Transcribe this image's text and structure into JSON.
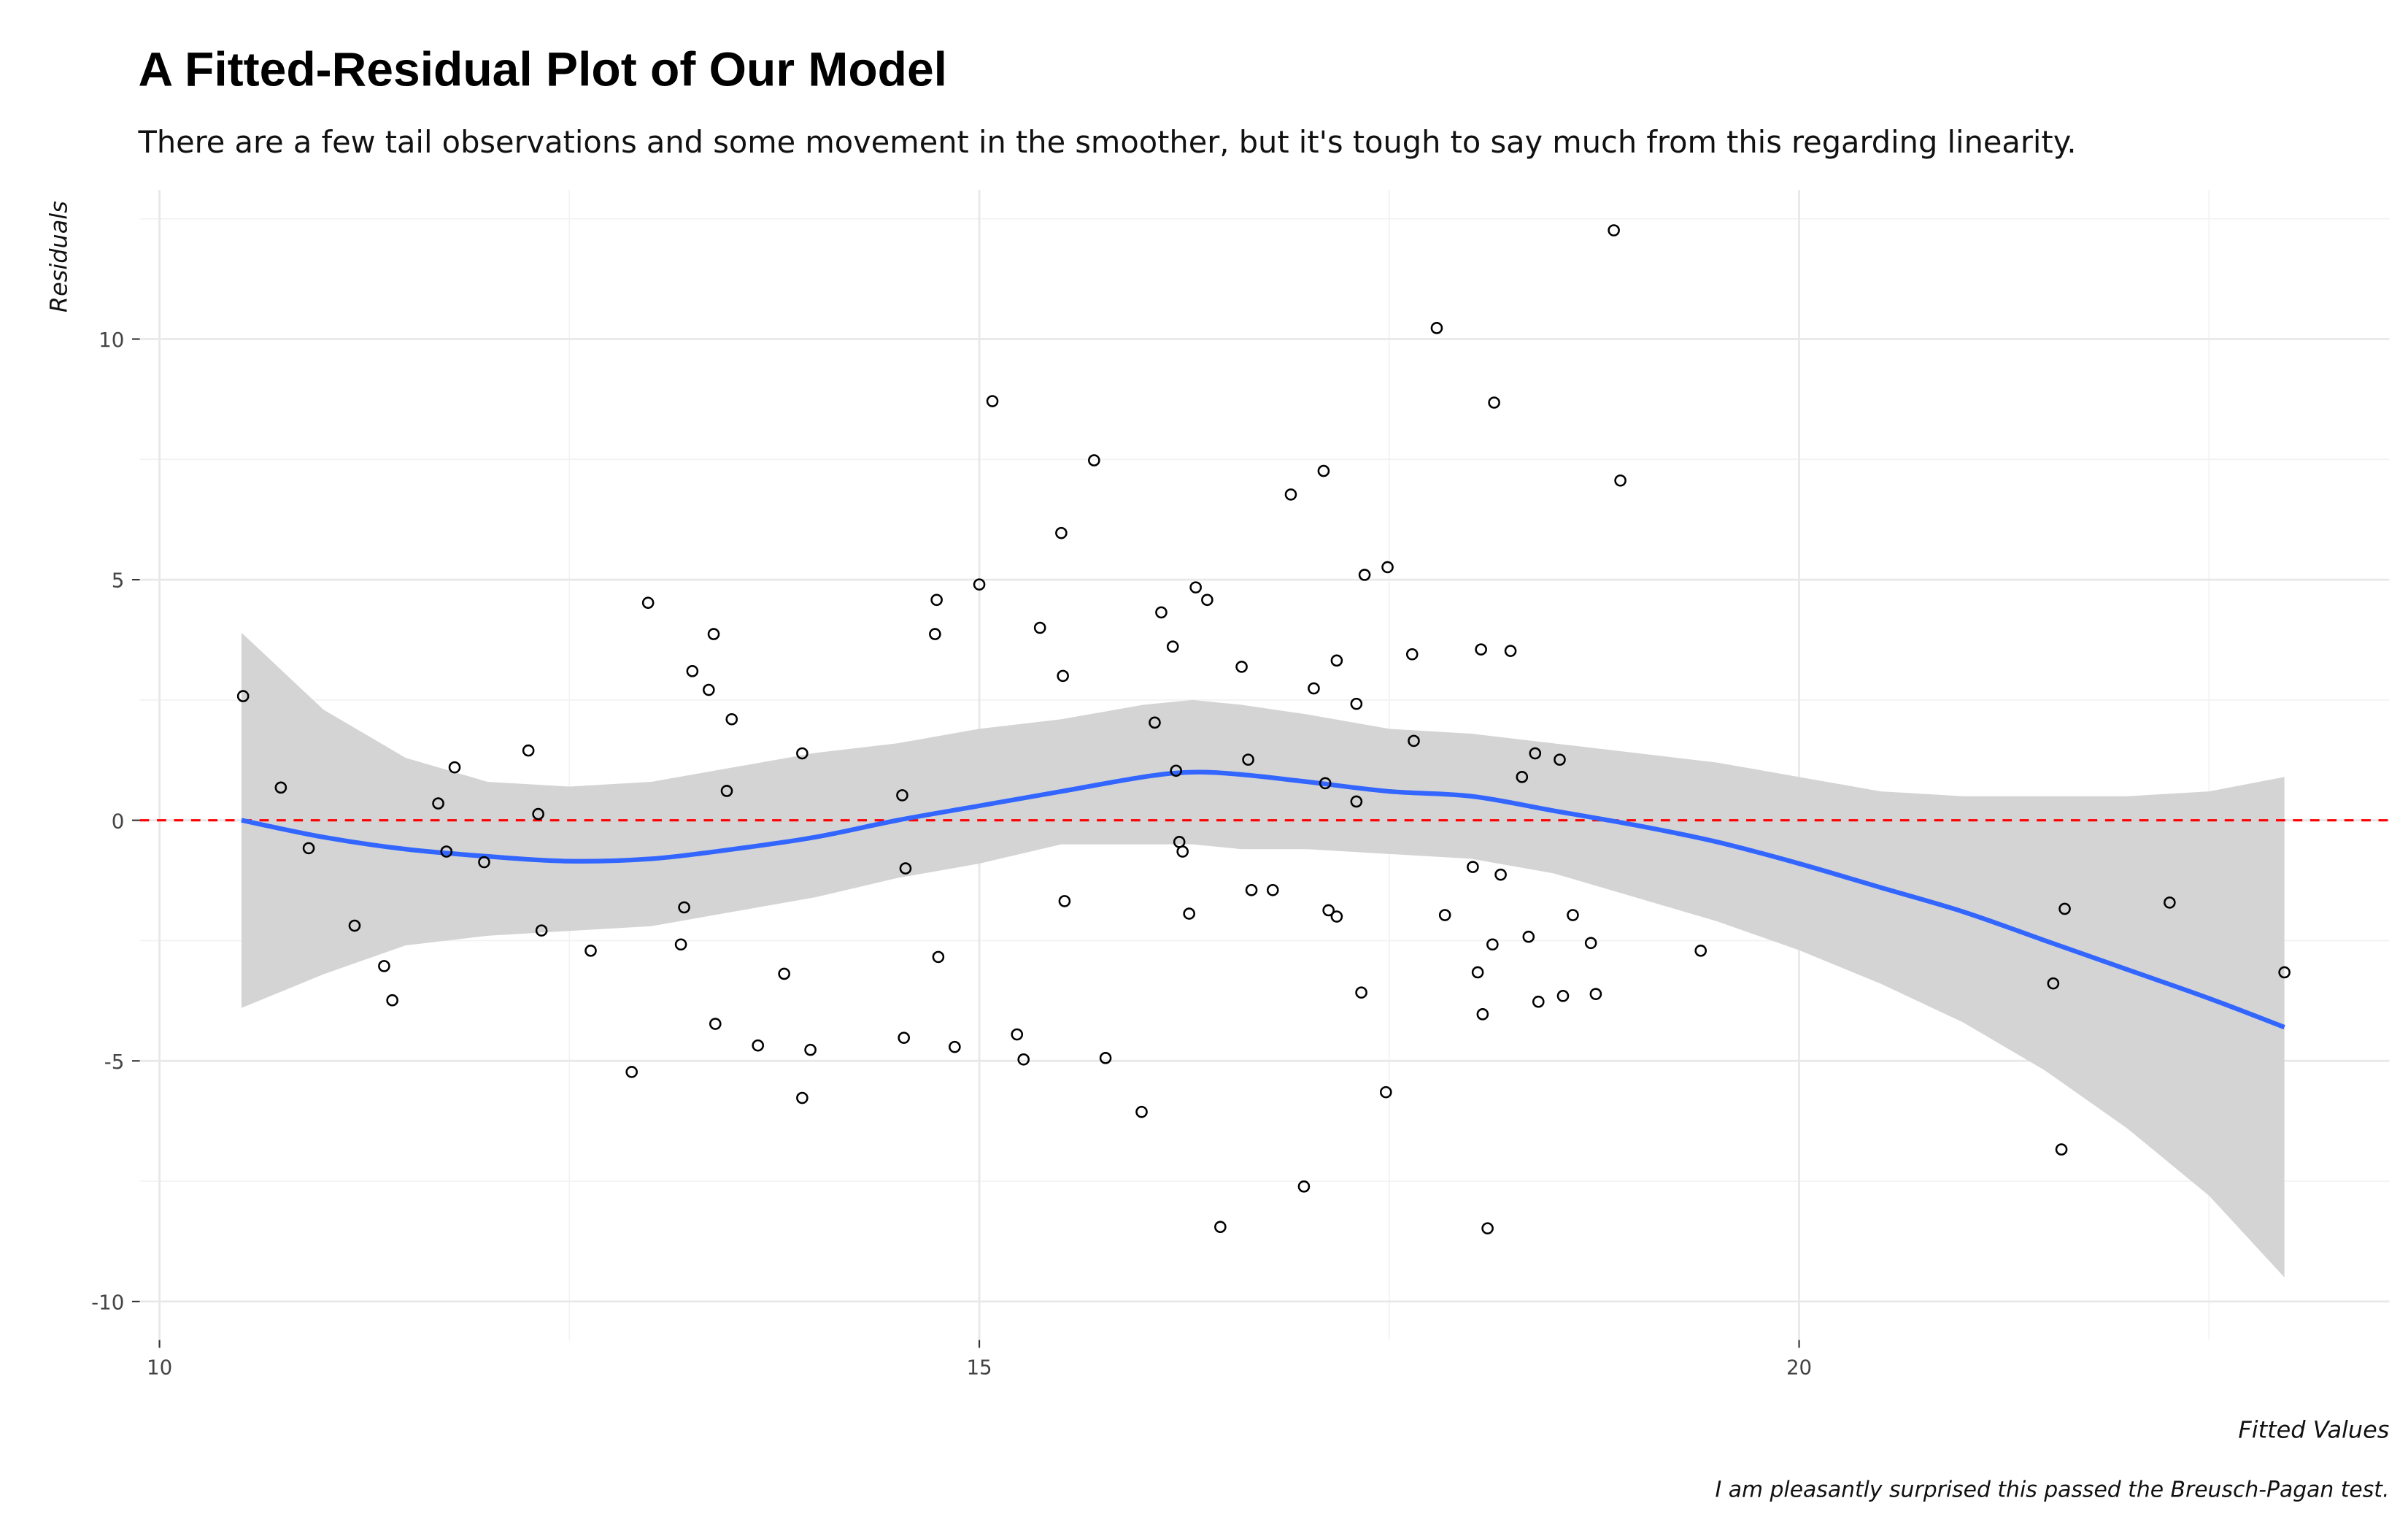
{
  "chart_data": {
    "type": "scatter",
    "title": "A Fitted-Residual Plot of Our Model",
    "subtitle": "There are a few tail observations and some movement in the smoother, but it's tough to say much from this regarding linearity.",
    "xlabel": "Fitted Values",
    "ylabel": "Residuals",
    "caption": "I am pleasantly surprised this passed the Breusch-Pagan test.",
    "xlim": [
      9.88,
      23.6
    ],
    "ylim": [
      -10.8,
      13.1
    ],
    "xticks": [
      10,
      15,
      20
    ],
    "xtick_labels": [
      "10",
      "15",
      "20"
    ],
    "yticks": [
      -10,
      -5,
      0,
      5,
      10
    ],
    "ytick_labels": [
      "-10",
      "-5",
      "0",
      "5",
      "10"
    ],
    "grid": true,
    "reference_line": {
      "y": 0,
      "style": "dashed",
      "color": "#ff0000"
    },
    "smoother_color": "#3366ff",
    "band_color": "#d4d4d4",
    "points": [
      [
        10.51,
        2.58
      ],
      [
        10.74,
        0.68
      ],
      [
        10.91,
        -0.58
      ],
      [
        11.19,
        -2.19
      ],
      [
        11.37,
        -3.03
      ],
      [
        11.42,
        -3.74
      ],
      [
        11.7,
        0.35
      ],
      [
        11.75,
        -0.65
      ],
      [
        11.8,
        1.1
      ],
      [
        11.98,
        -0.87
      ],
      [
        12.25,
        1.45
      ],
      [
        12.31,
        0.13
      ],
      [
        12.33,
        -2.29
      ],
      [
        12.63,
        -2.71
      ],
      [
        12.88,
        -5.23
      ],
      [
        12.98,
        4.52
      ],
      [
        13.18,
        -2.58
      ],
      [
        13.2,
        -1.81
      ],
      [
        13.25,
        3.1
      ],
      [
        13.35,
        2.71
      ],
      [
        13.38,
        3.87
      ],
      [
        13.39,
        -4.23
      ],
      [
        13.46,
        0.61
      ],
      [
        13.49,
        2.1
      ],
      [
        13.65,
        -4.68
      ],
      [
        13.81,
        -3.19
      ],
      [
        13.92,
        1.39
      ],
      [
        13.92,
        -5.77
      ],
      [
        13.97,
        -4.77
      ],
      [
        14.53,
        0.52
      ],
      [
        14.54,
        -4.52
      ],
      [
        14.55,
        -1.0
      ],
      [
        14.73,
        3.87
      ],
      [
        14.74,
        4.58
      ],
      [
        14.75,
        -2.84
      ],
      [
        14.85,
        -4.71
      ],
      [
        15.0,
        4.9
      ],
      [
        15.08,
        8.71
      ],
      [
        15.23,
        -4.45
      ],
      [
        15.27,
        -4.97
      ],
      [
        15.37,
        4.0
      ],
      [
        15.5,
        5.97
      ],
      [
        15.51,
        3.0
      ],
      [
        15.52,
        -1.68
      ],
      [
        15.7,
        7.48
      ],
      [
        15.77,
        -4.94
      ],
      [
        15.99,
        -6.06
      ],
      [
        16.07,
        2.03
      ],
      [
        16.11,
        4.32
      ],
      [
        16.18,
        3.61
      ],
      [
        16.2,
        1.03
      ],
      [
        16.22,
        -0.45
      ],
      [
        16.24,
        -0.65
      ],
      [
        16.28,
        -1.94
      ],
      [
        16.32,
        4.84
      ],
      [
        16.39,
        4.58
      ],
      [
        16.47,
        -8.45
      ],
      [
        16.6,
        3.19
      ],
      [
        16.64,
        1.26
      ],
      [
        16.66,
        -1.45
      ],
      [
        16.79,
        -1.45
      ],
      [
        16.9,
        6.77
      ],
      [
        16.98,
        -7.61
      ],
      [
        17.04,
        2.74
      ],
      [
        17.1,
        7.26
      ],
      [
        17.11,
        0.77
      ],
      [
        17.13,
        -1.87
      ],
      [
        17.18,
        -2.0
      ],
      [
        17.18,
        3.32
      ],
      [
        17.3,
        2.42
      ],
      [
        17.3,
        0.39
      ],
      [
        17.33,
        -3.58
      ],
      [
        17.35,
        5.1
      ],
      [
        17.48,
        -5.65
      ],
      [
        17.49,
        5.26
      ],
      [
        17.64,
        3.45
      ],
      [
        17.65,
        1.65
      ],
      [
        17.79,
        10.23
      ],
      [
        17.84,
        -1.97
      ],
      [
        18.01,
        -0.97
      ],
      [
        18.04,
        -3.16
      ],
      [
        18.06,
        3.55
      ],
      [
        18.07,
        -4.03
      ],
      [
        18.1,
        -8.48
      ],
      [
        18.13,
        -2.58
      ],
      [
        18.14,
        8.68
      ],
      [
        18.18,
        -1.13
      ],
      [
        18.24,
        3.52
      ],
      [
        18.31,
        0.9
      ],
      [
        18.35,
        -2.42
      ],
      [
        18.39,
        1.39
      ],
      [
        18.41,
        -3.77
      ],
      [
        18.54,
        1.26
      ],
      [
        18.56,
        -3.65
      ],
      [
        18.62,
        -1.97
      ],
      [
        18.73,
        -2.55
      ],
      [
        18.76,
        -3.61
      ],
      [
        18.87,
        12.26
      ],
      [
        18.91,
        7.06
      ],
      [
        19.4,
        -2.71
      ],
      [
        21.55,
        -3.39
      ],
      [
        21.6,
        -6.84
      ],
      [
        21.62,
        -1.84
      ],
      [
        22.26,
        -1.71
      ],
      [
        22.96,
        -3.16
      ]
    ],
    "smoother": {
      "x": [
        10.5,
        11,
        11.5,
        12,
        12.5,
        13,
        13.5,
        14,
        14.5,
        15,
        15.5,
        16,
        16.3,
        16.6,
        17,
        17.5,
        18,
        18.5,
        19,
        19.5,
        20,
        20.5,
        21,
        21.5,
        22,
        22.5,
        22.96
      ],
      "fit": [
        0,
        -0.35,
        -0.6,
        -0.75,
        -0.85,
        -0.8,
        -0.6,
        -0.35,
        0,
        0.3,
        0.6,
        0.9,
        1.0,
        0.95,
        0.8,
        0.6,
        0.5,
        0.2,
        -0.1,
        -0.45,
        -0.9,
        -1.4,
        -1.9,
        -2.5,
        -3.1,
        -3.7,
        -4.3
      ],
      "lower": [
        -3.9,
        -3.2,
        -2.6,
        -2.4,
        -2.3,
        -2.2,
        -1.9,
        -1.6,
        -1.2,
        -0.9,
        -0.5,
        -0.5,
        -0.5,
        -0.6,
        -0.6,
        -0.7,
        -0.8,
        -1.1,
        -1.6,
        -2.1,
        -2.7,
        -3.4,
        -4.2,
        -5.2,
        -6.4,
        -7.8,
        -9.5
      ],
      "upper": [
        3.9,
        2.3,
        1.3,
        0.8,
        0.7,
        0.8,
        1.1,
        1.4,
        1.6,
        1.9,
        2.1,
        2.4,
        2.5,
        2.4,
        2.2,
        1.9,
        1.8,
        1.6,
        1.4,
        1.2,
        0.9,
        0.6,
        0.5,
        0.5,
        0.5,
        0.6,
        0.9
      ]
    }
  }
}
